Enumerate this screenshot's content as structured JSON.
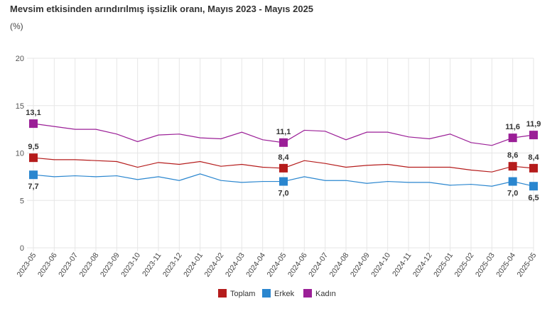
{
  "chart_data": {
    "type": "line",
    "title": "Mevsim etkisinden arındırılmış işsizlik oranı, Mayıs 2023 - Mayıs 2025",
    "ylabel": "(%)",
    "xlabel": "",
    "ylim": [
      0,
      20
    ],
    "yticks": [
      "0",
      "5",
      "10",
      "15",
      "20"
    ],
    "grid": true,
    "legend_position": "bottom-center",
    "categories": [
      "2023-05",
      "2023-06",
      "2023-07",
      "2023-08",
      "2023-09",
      "2023-10",
      "2023-11",
      "2023-12",
      "2024-01",
      "2024-02",
      "2024-03",
      "2024-04",
      "2024-05",
      "2024-06",
      "2024-07",
      "2024-08",
      "2024-09",
      "2024-10",
      "2024-11",
      "2024-12",
      "2025-01",
      "2025-02",
      "2025-03",
      "2025-04",
      "2025-05"
    ],
    "marked_indices": [
      0,
      12,
      23,
      24
    ],
    "series": [
      {
        "name": "Toplam",
        "color": "#b51c1c",
        "values": [
          9.5,
          9.3,
          9.3,
          9.2,
          9.1,
          8.5,
          9.0,
          8.8,
          9.1,
          8.6,
          8.8,
          8.5,
          8.4,
          9.2,
          8.9,
          8.5,
          8.7,
          8.8,
          8.5,
          8.5,
          8.5,
          8.2,
          8.0,
          8.6,
          8.4
        ],
        "labels": {
          "0": "9,5",
          "12": "8,4",
          "23": "8,6",
          "24": "8,4"
        },
        "label_pos": "above"
      },
      {
        "name": "Erkek",
        "color": "#2a86cf",
        "values": [
          7.7,
          7.5,
          7.6,
          7.5,
          7.6,
          7.2,
          7.5,
          7.1,
          7.8,
          7.1,
          6.9,
          7.0,
          7.0,
          7.5,
          7.1,
          7.1,
          6.8,
          7.0,
          6.9,
          6.9,
          6.6,
          6.7,
          6.5,
          7.0,
          6.5
        ],
        "labels": {
          "0": "7,7",
          "12": "7,0",
          "23": "7,0",
          "24": "6,5"
        },
        "label_pos": "below"
      },
      {
        "name": "Kadın",
        "color": "#9b1f97",
        "values": [
          13.1,
          12.8,
          12.5,
          12.5,
          12.0,
          11.2,
          11.9,
          12.0,
          11.6,
          11.5,
          12.2,
          11.4,
          11.1,
          12.4,
          12.3,
          11.4,
          12.2,
          12.2,
          11.7,
          11.5,
          12.0,
          11.1,
          10.8,
          11.6,
          11.9
        ],
        "labels": {
          "0": "13,1",
          "12": "11,1",
          "23": "11,6",
          "24": "11,9"
        },
        "label_pos": "above"
      }
    ]
  }
}
